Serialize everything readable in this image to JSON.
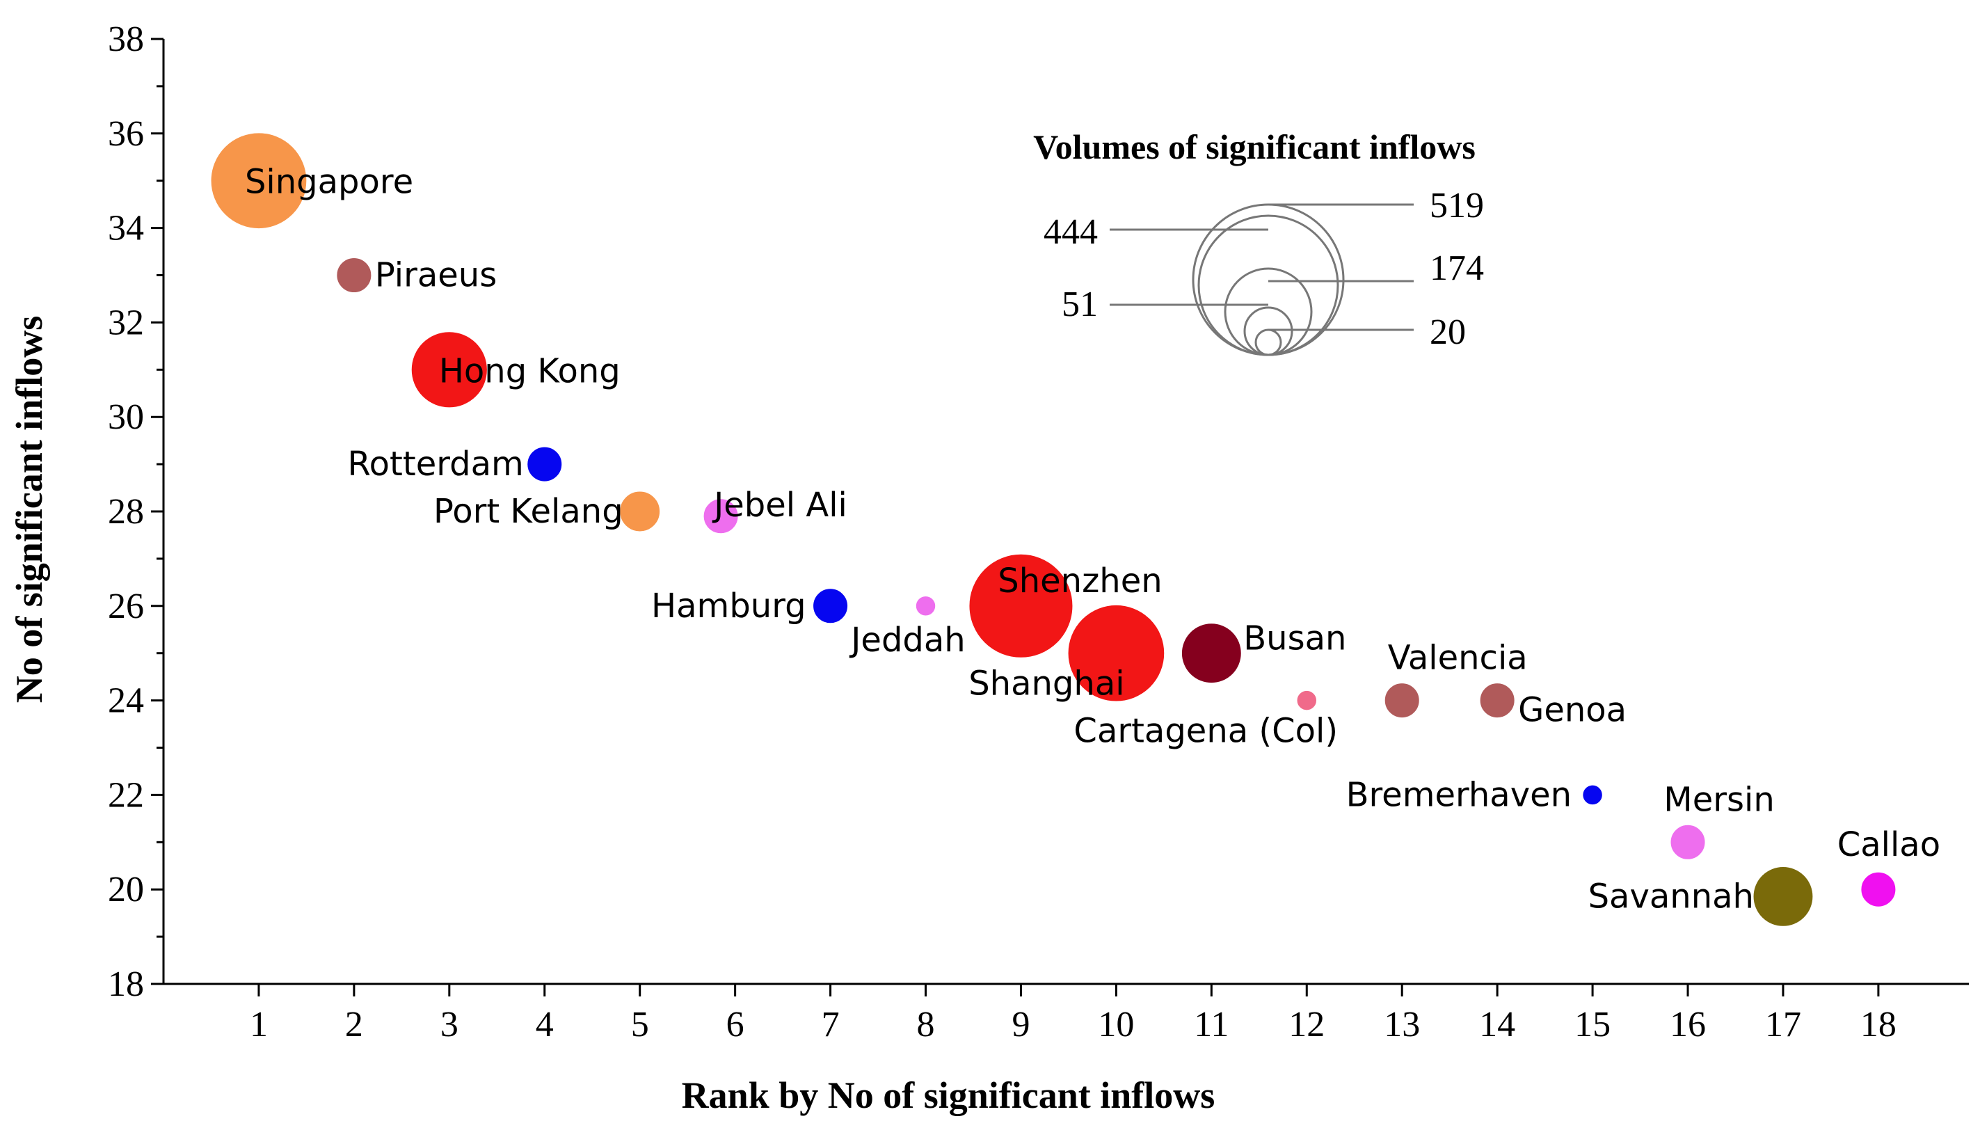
{
  "chart_data": {
    "type": "scatter",
    "xlabel": "Rank by No of significant inflows",
    "ylabel": "No of significant inflows",
    "xlim": [
      0,
      18.95
    ],
    "ylim": [
      18,
      38
    ],
    "xticks": [
      "1",
      "2",
      "3",
      "4",
      "5",
      "6",
      "7",
      "8",
      "9",
      "10",
      "11",
      "12",
      "13",
      "14",
      "15",
      "16",
      "17",
      "18"
    ],
    "yticks": [
      "18",
      "20",
      "22",
      "24",
      "26",
      "28",
      "30",
      "32",
      "34",
      "36",
      "38"
    ],
    "points": [
      {
        "name": "Singapore",
        "x": 1,
        "y": 35,
        "volume": 444,
        "color": "#F7964A"
      },
      {
        "name": "Piraeus",
        "x": 2,
        "y": 33,
        "volume": 60,
        "color": "#B05A5A"
      },
      {
        "name": "Hong Kong",
        "x": 3,
        "y": 31,
        "volume": 280,
        "color": "#F21616"
      },
      {
        "name": "Rotterdam",
        "x": 4,
        "y": 29,
        "volume": 60,
        "color": "#0606F0"
      },
      {
        "name": "Port Kelang",
        "x": 5,
        "y": 28,
        "volume": 80,
        "color": "#F7964A"
      },
      {
        "name": "Jebel Ali",
        "x": 5.85,
        "y": 27.9,
        "volume": 60,
        "color": "#EE6EEE"
      },
      {
        "name": "Hamburg",
        "x": 7,
        "y": 26,
        "volume": 60,
        "color": "#0606F0"
      },
      {
        "name": "Jeddah",
        "x": 8,
        "y": 26,
        "volume": 20,
        "color": "#EE6EEE"
      },
      {
        "name": "Shenzhen",
        "x": 9,
        "y": 26,
        "volume": 519,
        "color": "#F21616"
      },
      {
        "name": "Shanghai",
        "x": 10,
        "y": 25,
        "volume": 450,
        "color": "#F21616"
      },
      {
        "name": "Busan",
        "x": 11,
        "y": 25,
        "volume": 174,
        "color": "#85001E"
      },
      {
        "name": "Cartagena (Col)",
        "x": 12,
        "y": 24,
        "volume": 20,
        "color": "#F06A8A"
      },
      {
        "name": "Valencia",
        "x": 13,
        "y": 24,
        "volume": 60,
        "color": "#B05A5A"
      },
      {
        "name": "Genoa",
        "x": 14,
        "y": 24,
        "volume": 60,
        "color": "#B05A5A"
      },
      {
        "name": "Bremerhaven",
        "x": 15,
        "y": 22,
        "volume": 20,
        "color": "#0606F0"
      },
      {
        "name": "Mersin",
        "x": 16,
        "y": 21,
        "volume": 60,
        "color": "#EE6EEE"
      },
      {
        "name": "Savannah",
        "x": 17,
        "y": 19.85,
        "volume": 174,
        "color": "#7A6A0A"
      },
      {
        "name": "Callao",
        "x": 18,
        "y": 20,
        "volume": 60,
        "color": "#F010F0"
      }
    ],
    "legend": {
      "title": "Volumes of significant inflows",
      "values": [
        "519",
        "444",
        "174",
        "51",
        "20"
      ]
    }
  }
}
